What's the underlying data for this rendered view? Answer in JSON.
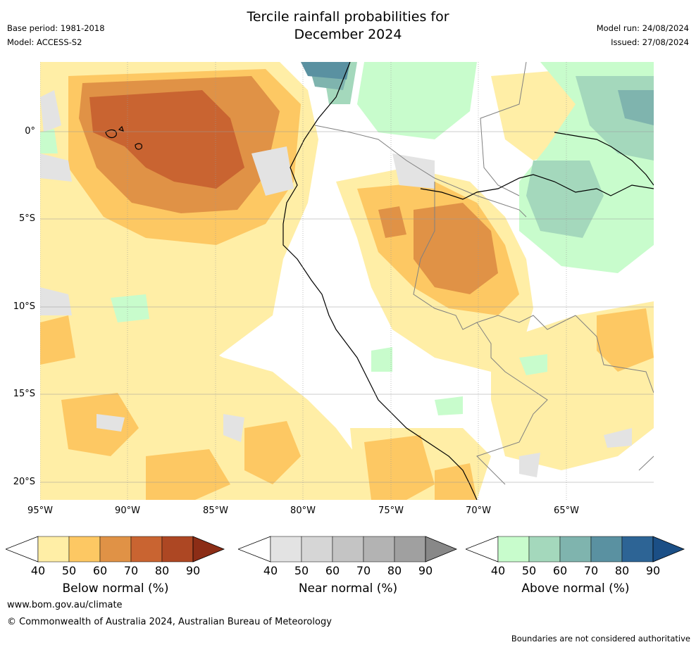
{
  "header": {
    "title_line1": "Tercile rainfall probabilities for",
    "title_line2": "December 2024",
    "base_period": "Base period: 1981-2018",
    "model": "Model: ACCESS-S2",
    "model_run": "Model run: 24/08/2024",
    "issued": "Issued: 27/08/2024"
  },
  "map": {
    "lat_labels": [
      "0°",
      "5°S",
      "10°S",
      "15°S",
      "20°S"
    ],
    "lon_labels": [
      "95°W",
      "90°W",
      "85°W",
      "80°W",
      "75°W",
      "70°W",
      "65°W"
    ],
    "colors": {
      "below": [
        "#ffeea6",
        "#fdc863",
        "#e09246",
        "#c96431",
        "#ad4723",
        "#8c2d16"
      ],
      "near": [
        "#e3e3e3",
        "#d6d6d6",
        "#c4c4c4",
        "#b3b3b3",
        "#a0a0a0",
        "#888888"
      ],
      "above": [
        "#c8fccc",
        "#a4d8bc",
        "#7fb4ae",
        "#5a91a1",
        "#2d6495",
        "#1b4f86"
      ],
      "coast": "#000000",
      "borders": "#808080"
    }
  },
  "colorbars": [
    {
      "id": "below",
      "label": "Below normal (%)",
      "ticks": [
        "40",
        "50",
        "60",
        "70",
        "80",
        "90"
      ]
    },
    {
      "id": "near",
      "label": "Near normal (%)",
      "ticks": [
        "40",
        "50",
        "60",
        "70",
        "80",
        "90"
      ]
    },
    {
      "id": "above",
      "label": "Above normal (%)",
      "ticks": [
        "40",
        "50",
        "60",
        "70",
        "80",
        "90"
      ]
    }
  ],
  "footer": {
    "url": "www.bom.gov.au/climate",
    "copyright": "© Commonwealth of Australia 2024, Australian Bureau of Meteorology",
    "disclaimer": "Boundaries are not considered authoritative"
  }
}
